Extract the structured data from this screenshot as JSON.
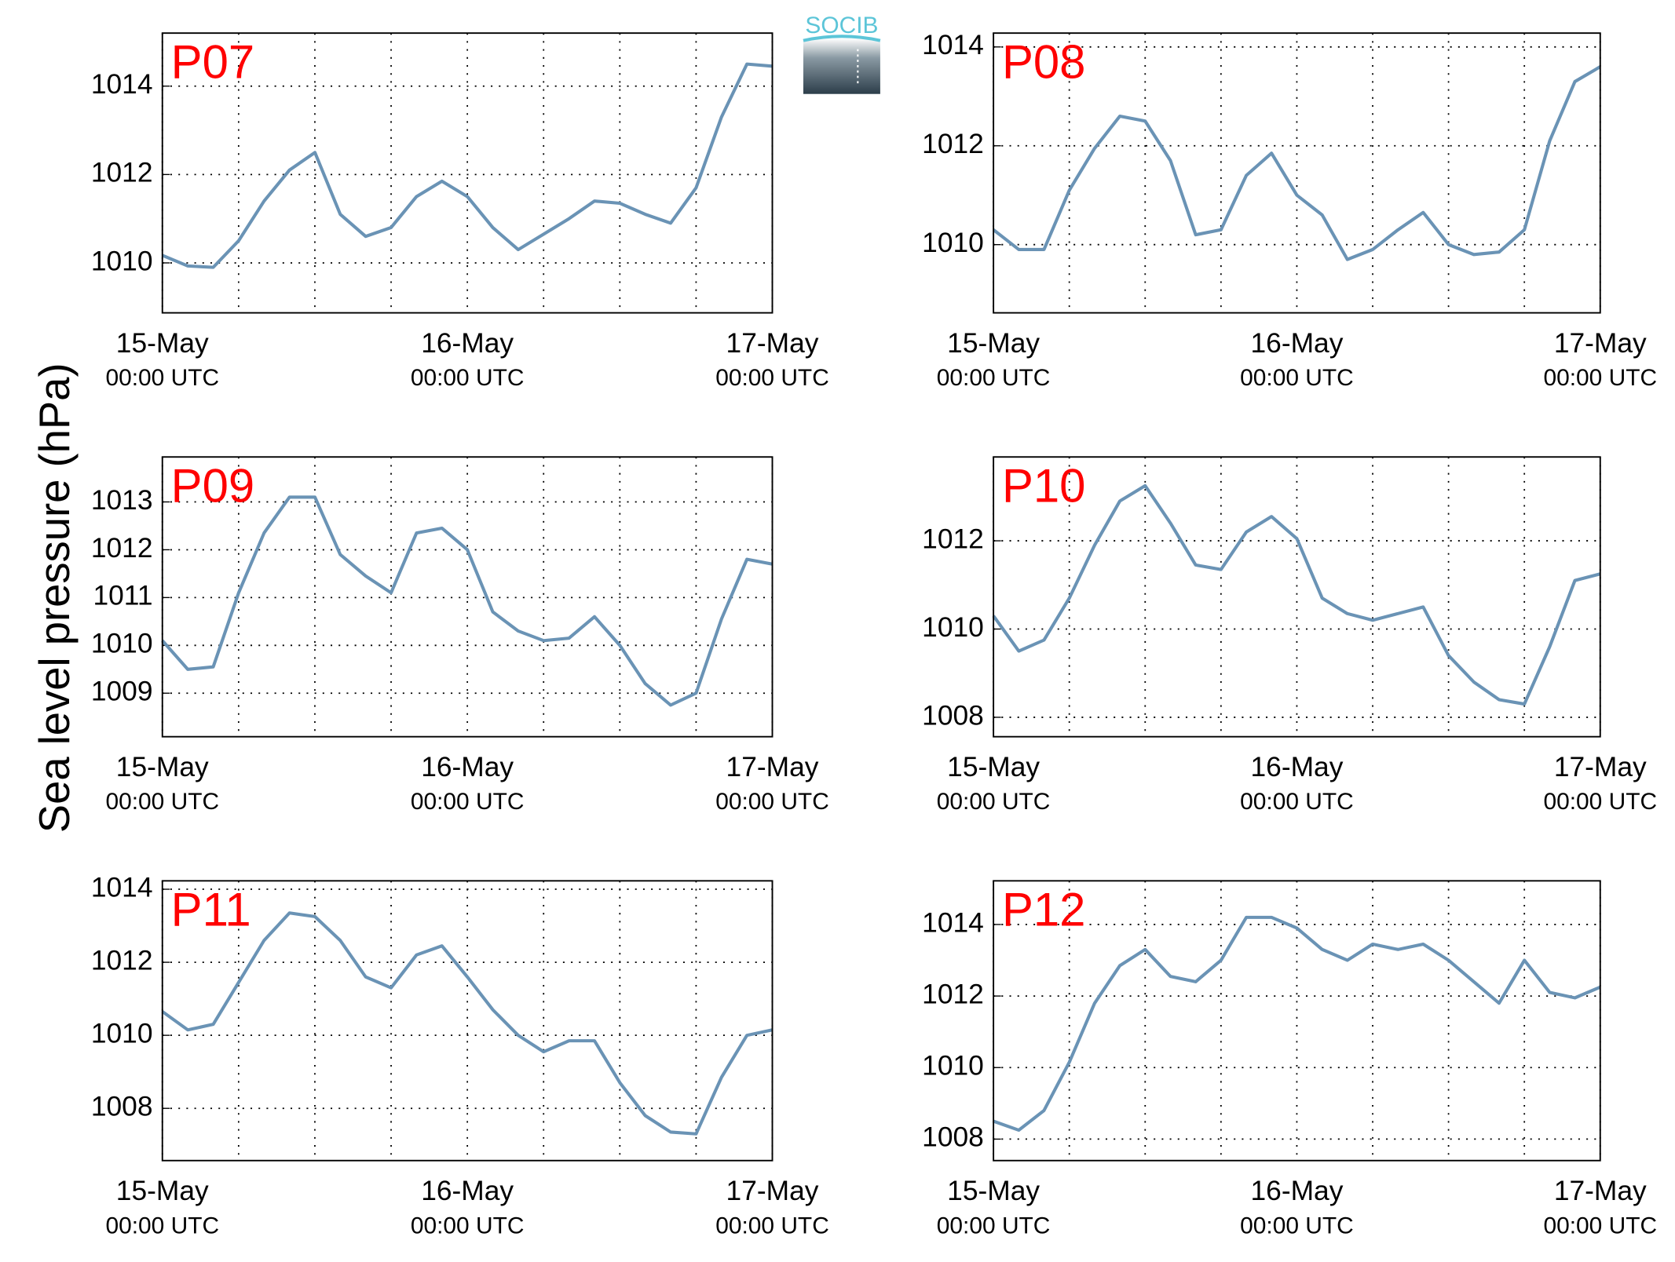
{
  "ylabel": "Sea level pressure (hPa)",
  "logo": "SOCIB",
  "chart_data": [
    {
      "type": "line",
      "title": "P07",
      "color": "#6a93b5",
      "grid": true,
      "x": [
        0,
        2,
        4,
        6,
        8,
        10,
        12,
        14,
        16,
        18,
        20,
        22,
        24,
        26,
        28,
        30,
        32,
        34,
        36,
        38,
        40,
        42,
        44,
        46,
        48
      ],
      "values": [
        1010.17,
        1009.93,
        1009.9,
        1010.5,
        1011.4,
        1012.1,
        1012.5,
        1011.1,
        1010.6,
        1010.8,
        1011.5,
        1011.85,
        1011.5,
        1010.8,
        1010.3,
        1010.65,
        1011,
        1011.4,
        1011.35,
        1011.1,
        1010.9,
        1011.7,
        1013.3,
        1014.5,
        1014.45
      ],
      "xlim": [
        0,
        48
      ],
      "xticks": [
        {
          "value": 0,
          "label": "15-May",
          "sublabel": "00:00 UTC"
        },
        {
          "value": 24,
          "label": "16-May",
          "sublabel": "00:00 UTC"
        },
        {
          "value": 48,
          "label": "17-May",
          "sublabel": "00:00 UTC"
        }
      ],
      "xminor": [
        6,
        12,
        18,
        30,
        36,
        42
      ],
      "ylim": [
        1008.87,
        1015.2
      ],
      "yticks": [
        1010,
        1012,
        1014
      ]
    },
    {
      "type": "line",
      "title": "P08",
      "color": "#6a93b5",
      "grid": true,
      "x": [
        0,
        2,
        4,
        6,
        8,
        10,
        12,
        14,
        16,
        18,
        20,
        22,
        24,
        26,
        28,
        30,
        32,
        34,
        36,
        38,
        40,
        42,
        44,
        46,
        48
      ],
      "values": [
        1010.3,
        1009.9,
        1009.9,
        1011.1,
        1011.95,
        1012.6,
        1012.5,
        1011.7,
        1010.2,
        1010.3,
        1011.4,
        1011.85,
        1011,
        1010.6,
        1009.7,
        1009.9,
        1010.3,
        1010.65,
        1010,
        1009.8,
        1009.85,
        1010.3,
        1012.1,
        1013.3,
        1013.6
      ],
      "xlim": [
        0,
        48
      ],
      "xticks": [
        {
          "value": 0,
          "label": "15-May",
          "sublabel": "00:00 UTC"
        },
        {
          "value": 24,
          "label": "16-May",
          "sublabel": "00:00 UTC"
        },
        {
          "value": 48,
          "label": "17-May",
          "sublabel": "00:00 UTC"
        }
      ],
      "xminor": [
        6,
        12,
        18,
        30,
        36,
        42
      ],
      "ylim": [
        1008.62,
        1014.28
      ],
      "yticks": [
        1010,
        1012,
        1014
      ]
    },
    {
      "type": "line",
      "title": "P09",
      "color": "#6a93b5",
      "grid": true,
      "x": [
        0,
        2,
        4,
        6,
        8,
        10,
        12,
        14,
        16,
        18,
        20,
        22,
        24,
        26,
        28,
        30,
        32,
        34,
        36,
        38,
        40,
        42,
        44,
        46,
        48
      ],
      "values": [
        1010.1,
        1009.5,
        1009.55,
        1011.1,
        1012.35,
        1013.1,
        1013.1,
        1011.9,
        1011.45,
        1011.1,
        1012.35,
        1012.45,
        1012,
        1010.7,
        1010.3,
        1010.1,
        1010.15,
        1010.6,
        1010,
        1009.2,
        1008.75,
        1009,
        1010.55,
        1011.8,
        1011.7
      ],
      "xlim": [
        0,
        48
      ],
      "xticks": [
        {
          "value": 0,
          "label": "15-May",
          "sublabel": "00:00 UTC"
        },
        {
          "value": 24,
          "label": "16-May",
          "sublabel": "00:00 UTC"
        },
        {
          "value": 48,
          "label": "17-May",
          "sublabel": "00:00 UTC"
        }
      ],
      "xminor": [
        6,
        12,
        18,
        30,
        36,
        42
      ],
      "ylim": [
        1008.09,
        1013.94
      ],
      "yticks": [
        1009,
        1010,
        1011,
        1012,
        1013
      ]
    },
    {
      "type": "line",
      "title": "P10",
      "color": "#6a93b5",
      "grid": true,
      "x": [
        0,
        2,
        4,
        6,
        8,
        10,
        12,
        14,
        16,
        18,
        20,
        22,
        24,
        26,
        28,
        30,
        32,
        34,
        36,
        38,
        40,
        42,
        44,
        46,
        48
      ],
      "values": [
        1010.3,
        1009.5,
        1009.75,
        1010.7,
        1011.9,
        1012.9,
        1013.25,
        1012.4,
        1011.45,
        1011.35,
        1012.2,
        1012.55,
        1012.05,
        1010.7,
        1010.35,
        1010.2,
        1010.35,
        1010.5,
        1009.4,
        1008.8,
        1008.4,
        1008.3,
        1009.6,
        1011.1,
        1011.25
      ],
      "xlim": [
        0,
        48
      ],
      "xticks": [
        {
          "value": 0,
          "label": "15-May",
          "sublabel": "00:00 UTC"
        },
        {
          "value": 24,
          "label": "16-May",
          "sublabel": "00:00 UTC"
        },
        {
          "value": 48,
          "label": "17-May",
          "sublabel": "00:00 UTC"
        }
      ],
      "xminor": [
        6,
        12,
        18,
        30,
        36,
        42
      ],
      "ylim": [
        1007.56,
        1013.9
      ],
      "yticks": [
        1008,
        1010,
        1012
      ]
    },
    {
      "type": "line",
      "title": "P11",
      "color": "#6a93b5",
      "grid": true,
      "x": [
        0,
        2,
        4,
        6,
        8,
        10,
        12,
        14,
        16,
        18,
        20,
        22,
        24,
        26,
        28,
        30,
        32,
        34,
        36,
        38,
        40,
        42,
        44,
        46,
        48
      ],
      "values": [
        1010.65,
        1010.15,
        1010.3,
        1011.45,
        1012.6,
        1013.35,
        1013.25,
        1012.6,
        1011.6,
        1011.3,
        1012.2,
        1012.45,
        1011.6,
        1010.7,
        1010,
        1009.55,
        1009.85,
        1009.85,
        1008.7,
        1007.8,
        1007.35,
        1007.3,
        1008.85,
        1010,
        1010.15
      ],
      "xlim": [
        0,
        48
      ],
      "xticks": [
        {
          "value": 0,
          "label": "15-May",
          "sublabel": "00:00 UTC"
        },
        {
          "value": 24,
          "label": "16-May",
          "sublabel": "00:00 UTC"
        },
        {
          "value": 48,
          "label": "17-May",
          "sublabel": "00:00 UTC"
        }
      ],
      "xminor": [
        6,
        12,
        18,
        30,
        36,
        42
      ],
      "ylim": [
        1006.57,
        1014.23
      ],
      "yticks": [
        1008,
        1010,
        1012,
        1014
      ]
    },
    {
      "type": "line",
      "title": "P12",
      "color": "#6a93b5",
      "grid": true,
      "x": [
        0,
        2,
        4,
        6,
        8,
        10,
        12,
        14,
        16,
        18,
        20,
        22,
        24,
        26,
        28,
        30,
        32,
        34,
        36,
        38,
        40,
        42,
        44,
        46,
        48
      ],
      "values": [
        1008.5,
        1008.25,
        1008.8,
        1010.15,
        1011.8,
        1012.85,
        1013.3,
        1012.55,
        1012.4,
        1013,
        1014.2,
        1014.2,
        1013.9,
        1013.3,
        1013,
        1013.45,
        1013.3,
        1013.45,
        1013,
        1012.4,
        1011.8,
        1013,
        1012.1,
        1011.95,
        1012.25
      ],
      "xlim": [
        0,
        48
      ],
      "xticks": [
        {
          "value": 0,
          "label": "15-May",
          "sublabel": "00:00 UTC"
        },
        {
          "value": 24,
          "label": "16-May",
          "sublabel": "00:00 UTC"
        },
        {
          "value": 48,
          "label": "17-May",
          "sublabel": "00:00 UTC"
        }
      ],
      "xminor": [
        6,
        12,
        18,
        30,
        36,
        42
      ],
      "ylim": [
        1007.4,
        1015.22
      ],
      "yticks": [
        1008,
        1010,
        1012,
        1014
      ]
    }
  ]
}
